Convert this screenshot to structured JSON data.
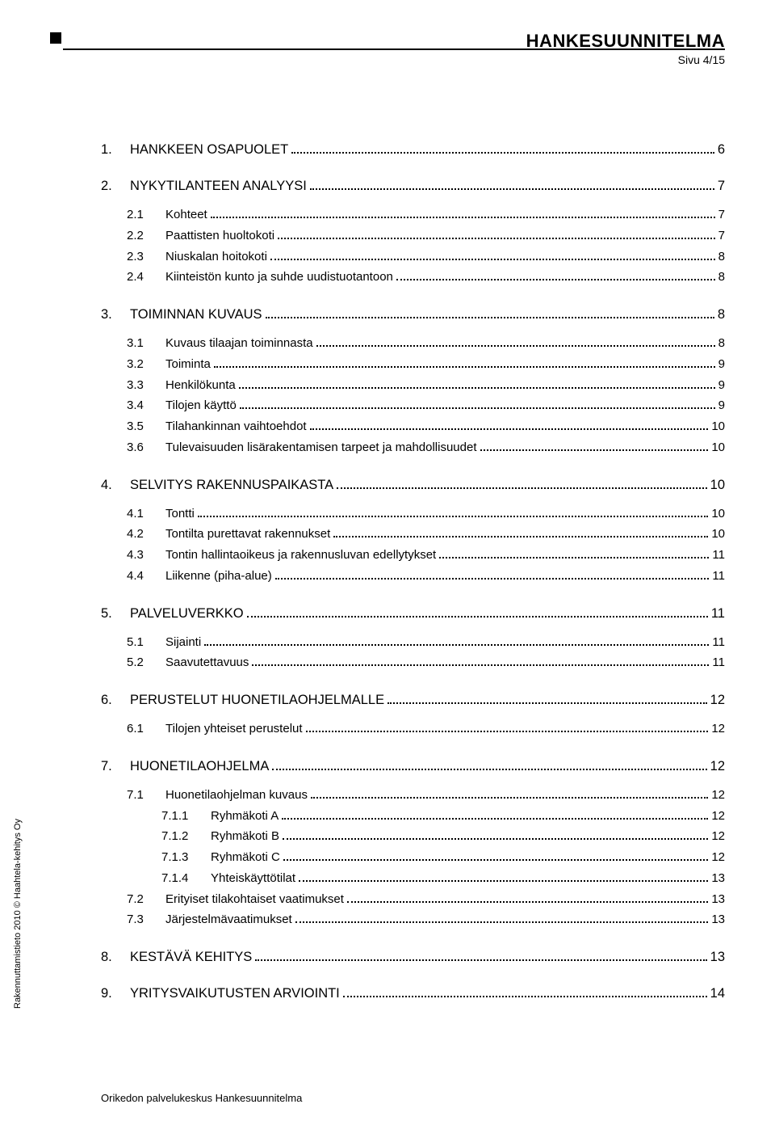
{
  "header": {
    "doc_title": "HANKESUUNNITELMA",
    "page_indicator": "Sivu 4/15"
  },
  "sidetext": "Rakennuttamistieto 2010 © Haahtela-kehitys Oy",
  "footer": "Orikedon palvelukeskus Hankesuunnitelma",
  "toc": [
    {
      "level": 1,
      "num": "1.",
      "title": "HANKKEEN OSAPUOLET",
      "page": "6"
    },
    {
      "level": 1,
      "num": "2.",
      "title": "NYKYTILANTEEN ANALYYSI",
      "page": "7"
    },
    {
      "level": 2,
      "num": "2.1",
      "title": "Kohteet",
      "page": "7",
      "gap": true
    },
    {
      "level": 2,
      "num": "2.2",
      "title": "Paattisten huoltokoti",
      "page": "7"
    },
    {
      "level": 2,
      "num": "2.3",
      "title": "Niuskalan hoitokoti",
      "page": "8"
    },
    {
      "level": 2,
      "num": "2.4",
      "title": "Kiinteistön kunto ja suhde uudistuotantoon",
      "page": "8"
    },
    {
      "level": 1,
      "num": "3.",
      "title": "TOIMINNAN KUVAUS",
      "page": "8"
    },
    {
      "level": 2,
      "num": "3.1",
      "title": "Kuvaus tilaajan toiminnasta",
      "page": "8",
      "gap": true
    },
    {
      "level": 2,
      "num": "3.2",
      "title": "Toiminta",
      "page": "9"
    },
    {
      "level": 2,
      "num": "3.3",
      "title": "Henkilökunta",
      "page": "9"
    },
    {
      "level": 2,
      "num": "3.4",
      "title": "Tilojen käyttö",
      "page": "9"
    },
    {
      "level": 2,
      "num": "3.5",
      "title": "Tilahankinnan vaihtoehdot",
      "page": "10"
    },
    {
      "level": 2,
      "num": "3.6",
      "title": "Tulevaisuuden lisärakentamisen tarpeet ja mahdollisuudet",
      "page": "10"
    },
    {
      "level": 1,
      "num": "4.",
      "title": "SELVITYS RAKENNUSPAIKASTA",
      "page": "10"
    },
    {
      "level": 2,
      "num": "4.1",
      "title": "Tontti",
      "page": "10",
      "gap": true
    },
    {
      "level": 2,
      "num": "4.2",
      "title": "Tontilta purettavat rakennukset",
      "page": "10"
    },
    {
      "level": 2,
      "num": "4.3",
      "title": "Tontin hallintaoikeus ja rakennusluvan edellytykset",
      "page": "11"
    },
    {
      "level": 2,
      "num": "4.4",
      "title": "Liikenne (piha-alue)",
      "page": "11"
    },
    {
      "level": 1,
      "num": "5.",
      "title": "PALVELUVERKKO",
      "page": "11"
    },
    {
      "level": 2,
      "num": "5.1",
      "title": "Sijainti",
      "page": "11",
      "gap": true
    },
    {
      "level": 2,
      "num": "5.2",
      "title": "Saavutettavuus",
      "page": "11"
    },
    {
      "level": 1,
      "num": "6.",
      "title": "PERUSTELUT HUONETILAOHJELMALLE",
      "page": "12"
    },
    {
      "level": 2,
      "num": "6.1",
      "title": "Tilojen yhteiset perustelut",
      "page": "12",
      "gap": true
    },
    {
      "level": 1,
      "num": "7.",
      "title": "HUONETILAOHJELMA",
      "page": "12"
    },
    {
      "level": 2,
      "num": "7.1",
      "title": "Huonetilaohjelman kuvaus",
      "page": "12",
      "gap": true
    },
    {
      "level": 3,
      "num": "7.1.1",
      "title": "Ryhmäkoti A",
      "page": "12"
    },
    {
      "level": 3,
      "num": "7.1.2",
      "title": "Ryhmäkoti B",
      "page": "12"
    },
    {
      "level": 3,
      "num": "7.1.3",
      "title": "Ryhmäkoti C",
      "page": "12"
    },
    {
      "level": 3,
      "num": "7.1.4",
      "title": "Yhteiskäyttötilat",
      "page": "13"
    },
    {
      "level": 2,
      "num": "7.2",
      "title": "Erityiset tilakohtaiset vaatimukset",
      "page": "13"
    },
    {
      "level": 2,
      "num": "7.3",
      "title": "Järjestelmävaatimukset",
      "page": "13"
    },
    {
      "level": 1,
      "num": "8.",
      "title": "KESTÄVÄ KEHITYS",
      "page": "13"
    },
    {
      "level": 1,
      "num": "9.",
      "title": "YRITYSVAIKUTUSTEN ARVIOINTI",
      "page": "14"
    }
  ]
}
